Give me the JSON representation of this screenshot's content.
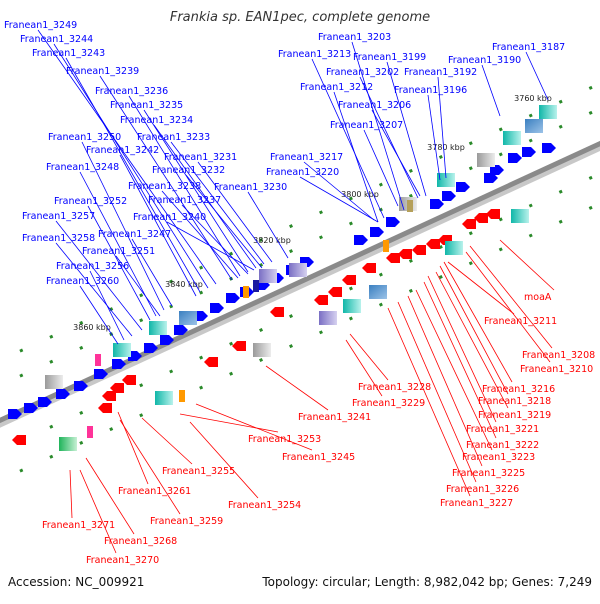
{
  "title": "Frankia sp. EAN1pec, complete genome",
  "footer": {
    "accession": "Accession: NC_009921",
    "summary": "Topology: circular; Length: 8,982,042 bp; Genes: 7,249"
  },
  "colors": {
    "forward_strand": "#0000ff",
    "reverse_strand": "#ff0000",
    "backbone": "#8a8a8a",
    "tick": "#2a8a2a"
  },
  "kbp_ticks": [
    {
      "label": "3760 kbp"
    },
    {
      "label": "3780 kbp"
    },
    {
      "label": "3800 kbp"
    },
    {
      "label": "3820 kbp"
    },
    {
      "label": "3840 kbp"
    },
    {
      "label": "3860 kbp"
    }
  ],
  "forward_labels": [
    {
      "text": "Franean1_3249"
    },
    {
      "text": "Franean1_3244"
    },
    {
      "text": "Franean1_3243"
    },
    {
      "text": "Franean1_3239"
    },
    {
      "text": "Franean1_3236"
    },
    {
      "text": "Franean1_3235"
    },
    {
      "text": "Franean1_3234"
    },
    {
      "text": "Franean1_3250"
    },
    {
      "text": "Franean1_3233"
    },
    {
      "text": "Franean1_3242"
    },
    {
      "text": "Franean1_3231"
    },
    {
      "text": "Franean1_3248"
    },
    {
      "text": "Franean1_3232"
    },
    {
      "text": "Franean1_3238"
    },
    {
      "text": "Franean1_3230"
    },
    {
      "text": "Franean1_3252"
    },
    {
      "text": "Franean1_3237"
    },
    {
      "text": "Franean1_3257"
    },
    {
      "text": "Franean1_3240"
    },
    {
      "text": "Franean1_3247"
    },
    {
      "text": "Franean1_3258"
    },
    {
      "text": "Franean1_3251"
    },
    {
      "text": "Franean1_3256"
    },
    {
      "text": "Franean1_3260"
    },
    {
      "text": "Franean1_3203"
    },
    {
      "text": "Franean1_3213"
    },
    {
      "text": "Franean1_3199"
    },
    {
      "text": "Franean1_3187"
    },
    {
      "text": "Franean1_3190"
    },
    {
      "text": "Franean1_3202"
    },
    {
      "text": "Franean1_3192"
    },
    {
      "text": "Franean1_3212"
    },
    {
      "text": "Franean1_3196"
    },
    {
      "text": "Franean1_3206"
    },
    {
      "text": "Franean1_3207"
    },
    {
      "text": "Franean1_3217"
    },
    {
      "text": "Franean1_3220"
    }
  ],
  "reverse_labels": [
    {
      "text": "moaA"
    },
    {
      "text": "Franean1_3211"
    },
    {
      "text": "Franean1_3208"
    },
    {
      "text": "Franean1_3210"
    },
    {
      "text": "Franean1_3216"
    },
    {
      "text": "Franean1_3218"
    },
    {
      "text": "Franean1_3219"
    },
    {
      "text": "Franean1_3228"
    },
    {
      "text": "Franean1_3229"
    },
    {
      "text": "Franean1_3241"
    },
    {
      "text": "Franean1_3221"
    },
    {
      "text": "Franean1_3222"
    },
    {
      "text": "Franean1_3223"
    },
    {
      "text": "Franean1_3253"
    },
    {
      "text": "Franean1_3245"
    },
    {
      "text": "Franean1_3225"
    },
    {
      "text": "Franean1_3226"
    },
    {
      "text": "Franean1_3227"
    },
    {
      "text": "Franean1_3255"
    },
    {
      "text": "Franean1_3261"
    },
    {
      "text": "Franean1_3254"
    },
    {
      "text": "Franean1_3259"
    },
    {
      "text": "Franean1_3271"
    },
    {
      "text": "Franean1_3268"
    },
    {
      "text": "Franean1_3270"
    }
  ]
}
